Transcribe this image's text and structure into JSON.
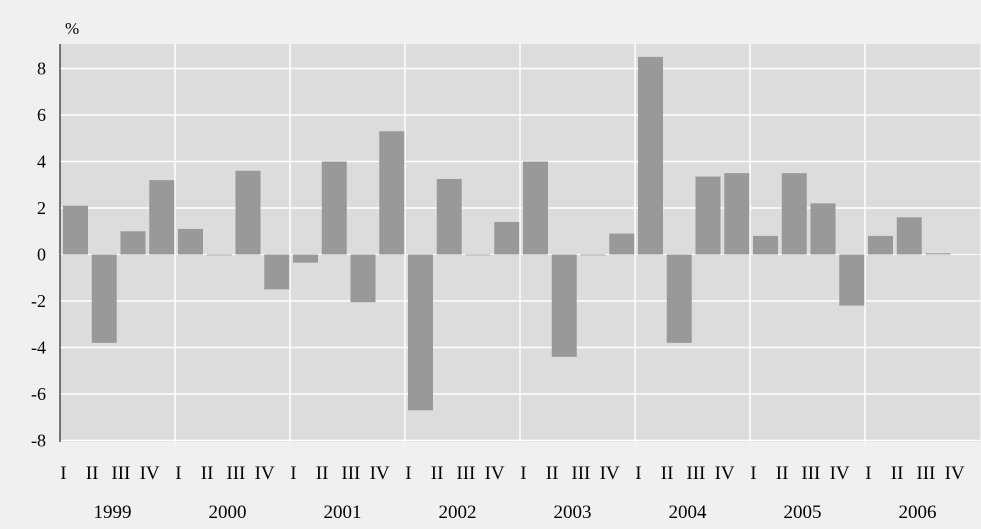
{
  "chart_data": {
    "type": "bar",
    "ylabel": "%",
    "ylim": [
      -8,
      9
    ],
    "yticks": [
      8,
      6,
      4,
      2,
      0,
      -2,
      -4,
      -6,
      -8
    ],
    "ytick_labels": [
      "8",
      "6",
      "4",
      "2",
      "0",
      "-2",
      "-4",
      "-6",
      "-8"
    ],
    "quarters": [
      "I",
      "II",
      "III",
      "IV"
    ],
    "years": [
      "1999",
      "2000",
      "2001",
      "2002",
      "2003",
      "2004",
      "2005",
      "2006"
    ],
    "categories": [
      "1999 I",
      "1999 II",
      "1999 III",
      "1999 IV",
      "2000 I",
      "2000 II",
      "2000 III",
      "2000 IV",
      "2001 I",
      "2001 II",
      "2001 III",
      "2001 IV",
      "2002 I",
      "2002 II",
      "2002 III",
      "2002 IV",
      "2003 I",
      "2003 II",
      "2003 III",
      "2003 IV",
      "2004 I",
      "2004 II",
      "2004 III",
      "2004 IV",
      "2005 I",
      "2005 II",
      "2005 III",
      "2005 IV",
      "2006 I",
      "2006 II",
      "2006 III",
      "2006 IV"
    ],
    "values": [
      2.1,
      -3.8,
      1.0,
      3.2,
      1.1,
      0.0,
      3.6,
      -1.5,
      -0.35,
      4.0,
      -2.05,
      5.3,
      -6.7,
      3.25,
      0.0,
      1.4,
      4.0,
      -4.4,
      0.0,
      0.9,
      8.5,
      -3.8,
      3.35,
      3.5,
      0.8,
      3.5,
      2.2,
      -2.2,
      0.8,
      1.6,
      0.05,
      null
    ],
    "grid": true,
    "colors": {
      "background": "#f0f0f0",
      "plot_area": "#dcdcdc",
      "bar": "#999999",
      "gridline": "#ffffff",
      "axis": "#000000"
    }
  }
}
